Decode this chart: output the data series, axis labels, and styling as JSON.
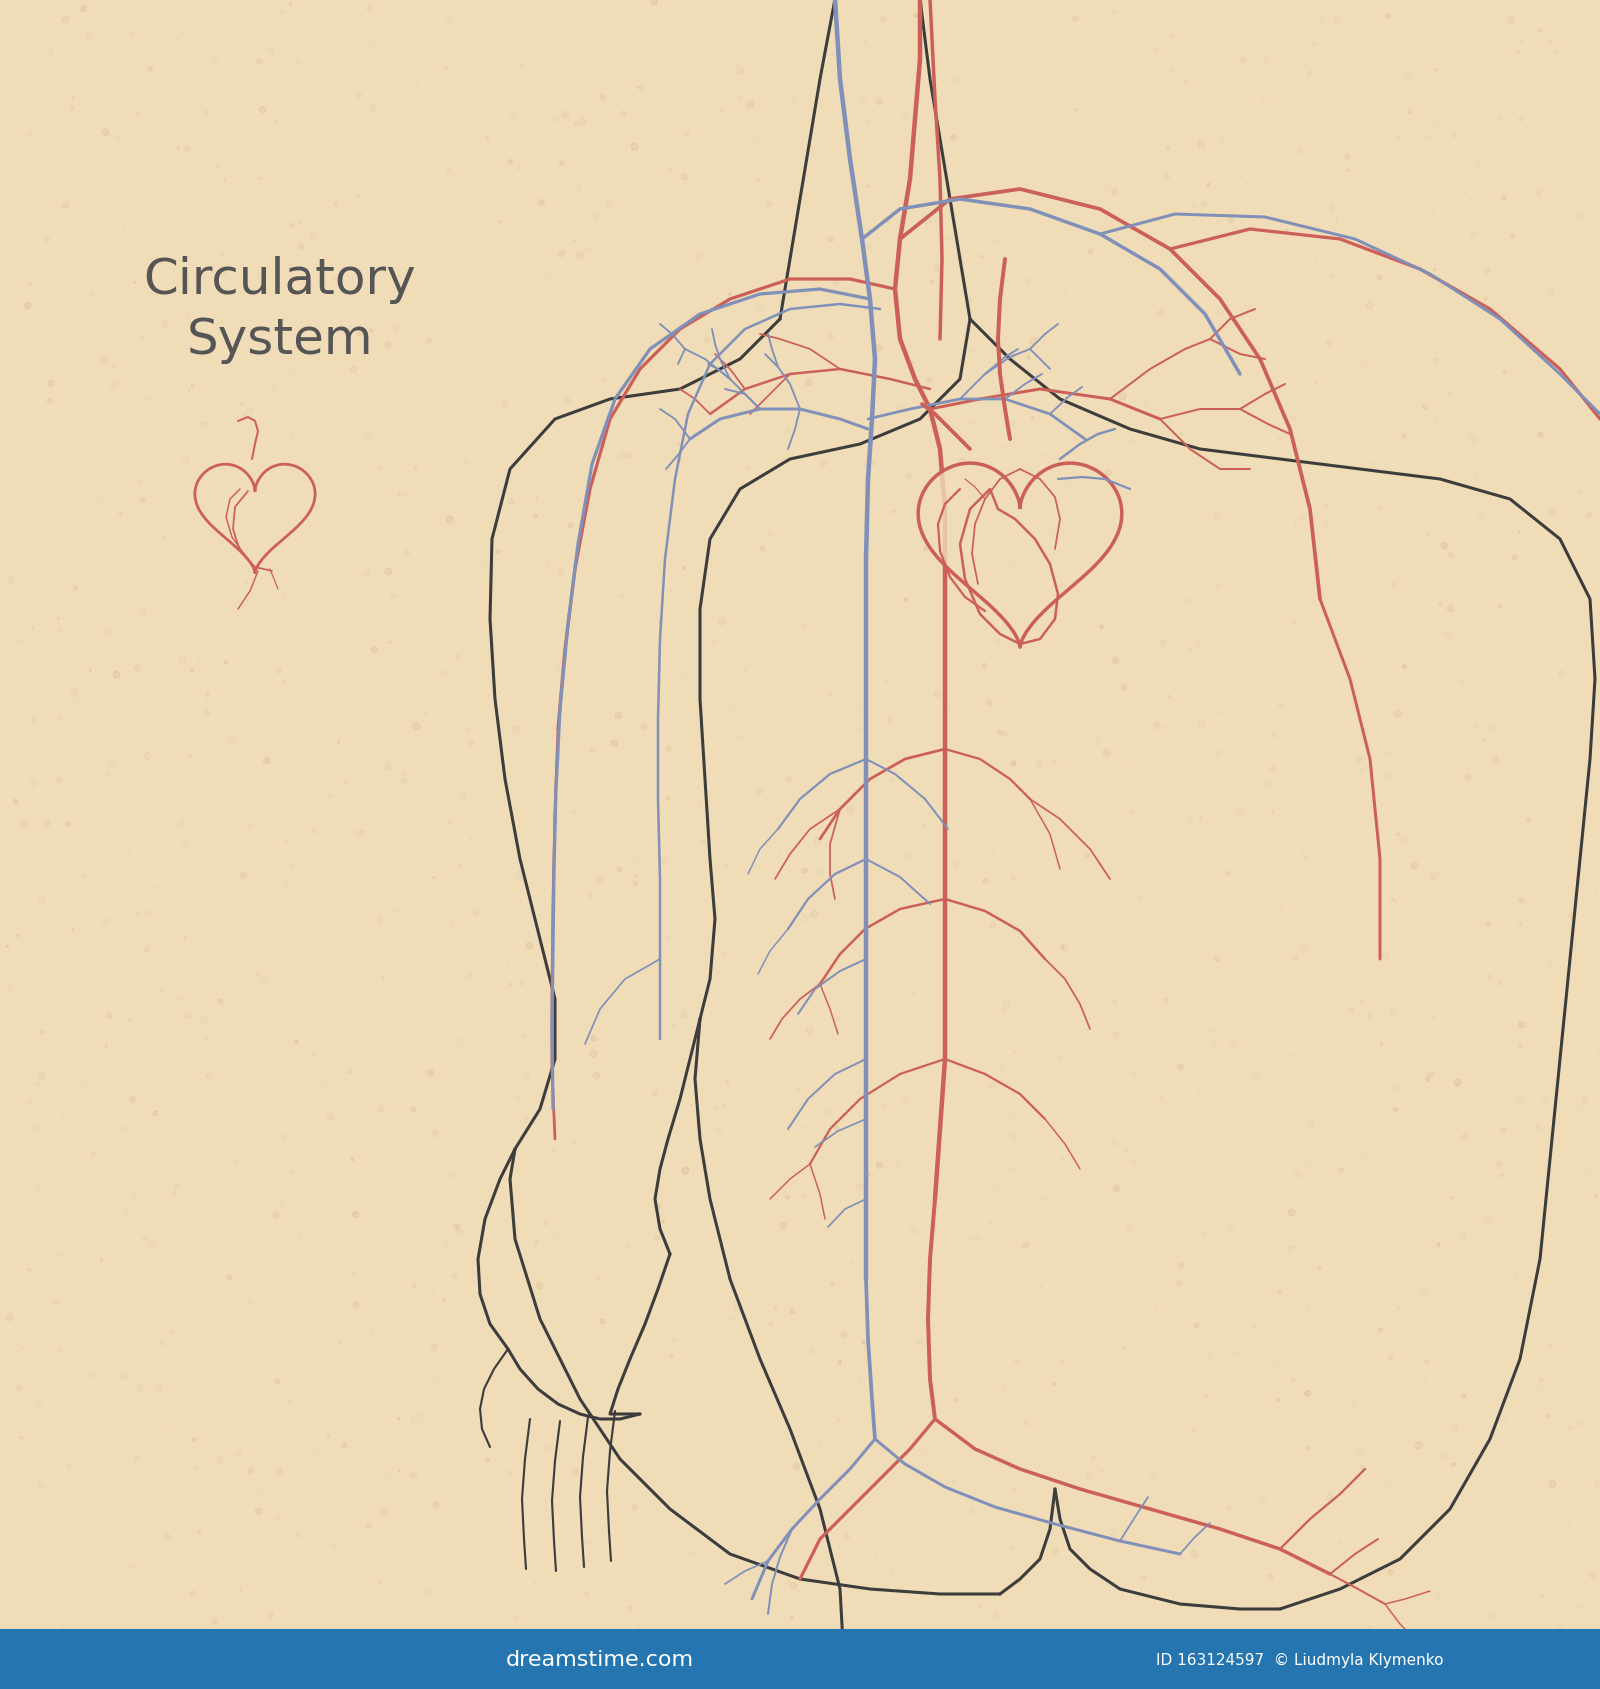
{
  "background_color": "#f0ddb8",
  "body_color": "#3d3d3d",
  "artery_color": "#cc5f58",
  "vein_color": "#8090b8",
  "title": "Circulatory\nSystem",
  "title_color": "#555555",
  "title_fontsize": 36,
  "body_lw": 2.2,
  "artery_lw": 1.8,
  "vein_lw": 1.8,
  "noise_seeds": 42
}
